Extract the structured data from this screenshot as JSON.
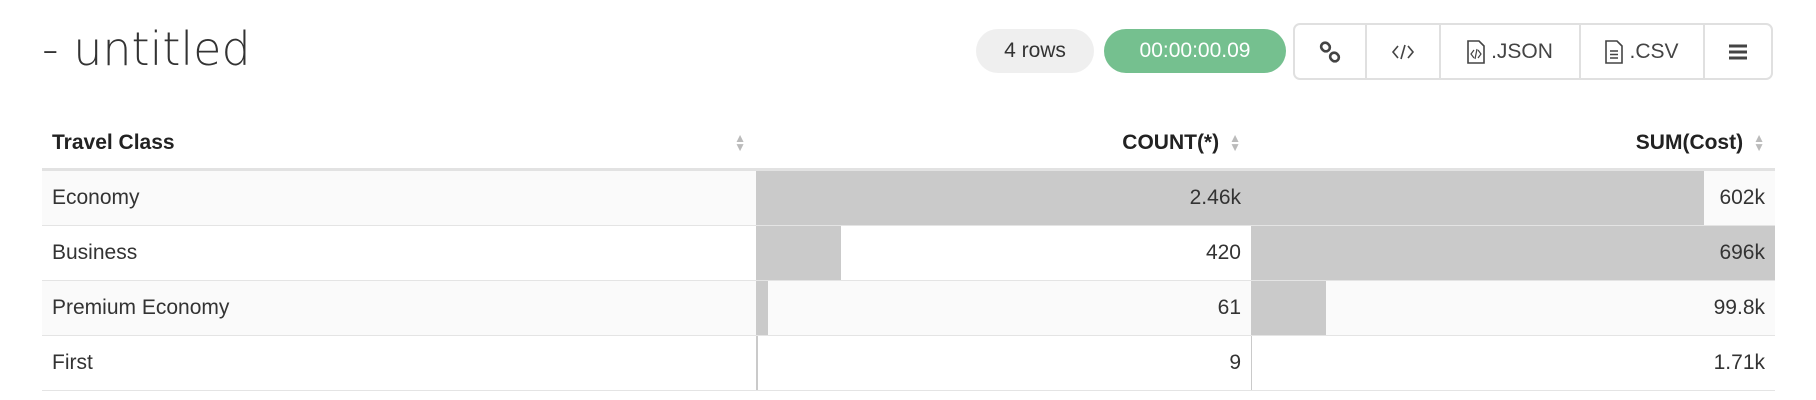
{
  "title": "- untitled",
  "status": {
    "rows": "4 rows",
    "elapsed": "00:00:00.09",
    "elapsed_color": "#75c08f"
  },
  "toolbar": {
    "link_icon": "link-icon",
    "embed_icon": "code-icon",
    "json_label": ".JSON",
    "csv_label": ".CSV",
    "menu_icon": "hamburger-menu-icon"
  },
  "table": {
    "columns": [
      "Travel Class",
      "COUNT(*)",
      "SUM(Cost)"
    ],
    "bar_color": "#cacaca",
    "rows": [
      {
        "class": "Economy",
        "count": "2.46k",
        "count_value": 2460,
        "cost": "602k",
        "cost_value": 602000
      },
      {
        "class": "Business",
        "count": "420",
        "count_value": 420,
        "cost": "696k",
        "cost_value": 696000
      },
      {
        "class": "Premium Economy",
        "count": "61",
        "count_value": 61,
        "cost": "99.8k",
        "cost_value": 99800
      },
      {
        "class": "First",
        "count": "9",
        "count_value": 9,
        "cost": "1.71k",
        "cost_value": 1710
      }
    ]
  }
}
